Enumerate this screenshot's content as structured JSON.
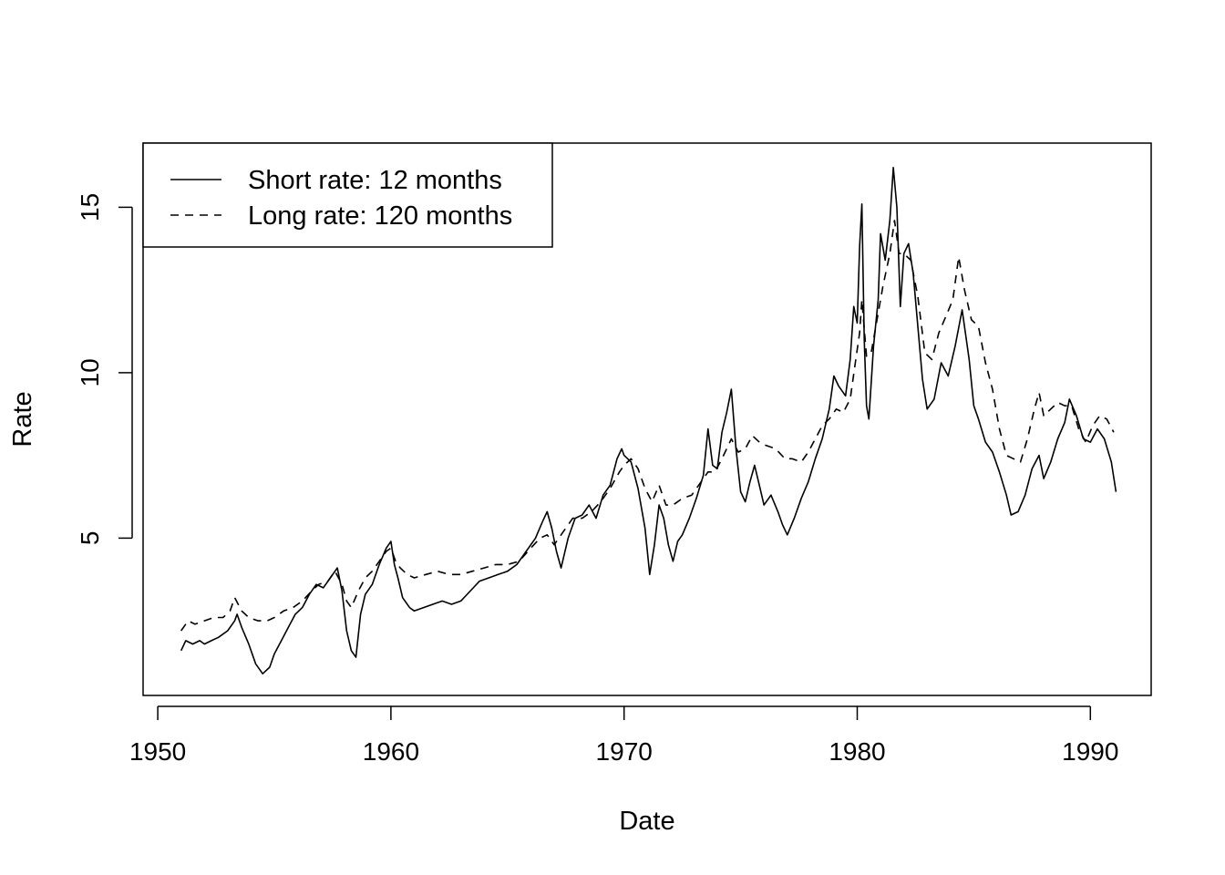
{
  "chart_data": {
    "type": "line",
    "title": "",
    "xlabel": "Date",
    "ylabel": "Rate",
    "xlim": [
      1950.0,
      1993.0
    ],
    "ylim": [
      0.0,
      17.0
    ],
    "x_ticks": [
      1950,
      1960,
      1970,
      1980,
      1990
    ],
    "y_ticks": [
      5,
      10,
      15
    ],
    "grid": false,
    "legend_position": "top-left",
    "series": [
      {
        "name": "Short rate: 12 months",
        "line_style": "solid",
        "color": "#000000",
        "points": [
          [
            1951.0,
            1.6
          ],
          [
            1951.2,
            1.9
          ],
          [
            1951.5,
            1.8
          ],
          [
            1951.8,
            1.9
          ],
          [
            1952.0,
            1.8
          ],
          [
            1952.3,
            1.9
          ],
          [
            1952.6,
            2.0
          ],
          [
            1953.0,
            2.2
          ],
          [
            1953.3,
            2.5
          ],
          [
            1953.4,
            2.7
          ],
          [
            1953.6,
            2.3
          ],
          [
            1953.9,
            1.8
          ],
          [
            1954.2,
            1.2
          ],
          [
            1954.5,
            0.9
          ],
          [
            1954.8,
            1.1
          ],
          [
            1955.0,
            1.5
          ],
          [
            1955.3,
            1.9
          ],
          [
            1955.6,
            2.3
          ],
          [
            1955.9,
            2.7
          ],
          [
            1956.2,
            2.9
          ],
          [
            1956.5,
            3.3
          ],
          [
            1956.8,
            3.6
          ],
          [
            1957.1,
            3.5
          ],
          [
            1957.4,
            3.8
          ],
          [
            1957.7,
            4.1
          ],
          [
            1957.9,
            3.4
          ],
          [
            1958.1,
            2.2
          ],
          [
            1958.3,
            1.6
          ],
          [
            1958.5,
            1.4
          ],
          [
            1958.7,
            2.7
          ],
          [
            1958.9,
            3.3
          ],
          [
            1959.2,
            3.6
          ],
          [
            1959.5,
            4.2
          ],
          [
            1959.8,
            4.7
          ],
          [
            1960.0,
            4.9
          ],
          [
            1960.15,
            4.2
          ],
          [
            1960.3,
            3.8
          ],
          [
            1960.5,
            3.2
          ],
          [
            1960.8,
            2.9
          ],
          [
            1961.0,
            2.8
          ],
          [
            1961.4,
            2.9
          ],
          [
            1961.8,
            3.0
          ],
          [
            1962.2,
            3.1
          ],
          [
            1962.6,
            3.0
          ],
          [
            1963.0,
            3.1
          ],
          [
            1963.4,
            3.4
          ],
          [
            1963.8,
            3.7
          ],
          [
            1964.2,
            3.8
          ],
          [
            1964.6,
            3.9
          ],
          [
            1965.0,
            4.0
          ],
          [
            1965.4,
            4.2
          ],
          [
            1965.8,
            4.6
          ],
          [
            1966.2,
            5.0
          ],
          [
            1966.5,
            5.5
          ],
          [
            1966.7,
            5.8
          ],
          [
            1966.9,
            5.3
          ],
          [
            1967.1,
            4.6
          ],
          [
            1967.3,
            4.1
          ],
          [
            1967.6,
            5.0
          ],
          [
            1967.9,
            5.6
          ],
          [
            1968.2,
            5.7
          ],
          [
            1968.5,
            6.0
          ],
          [
            1968.8,
            5.6
          ],
          [
            1969.1,
            6.3
          ],
          [
            1969.4,
            6.6
          ],
          [
            1969.7,
            7.4
          ],
          [
            1969.9,
            7.7
          ],
          [
            1970.0,
            7.5
          ],
          [
            1970.3,
            7.3
          ],
          [
            1970.6,
            6.5
          ],
          [
            1970.9,
            5.3
          ],
          [
            1971.1,
            3.9
          ],
          [
            1971.3,
            4.8
          ],
          [
            1971.5,
            6.0
          ],
          [
            1971.7,
            5.6
          ],
          [
            1971.9,
            4.8
          ],
          [
            1972.1,
            4.3
          ],
          [
            1972.3,
            4.9
          ],
          [
            1972.5,
            5.1
          ],
          [
            1972.8,
            5.6
          ],
          [
            1973.1,
            6.2
          ],
          [
            1973.4,
            6.9
          ],
          [
            1973.6,
            8.3
          ],
          [
            1973.8,
            7.2
          ],
          [
            1974.0,
            7.1
          ],
          [
            1974.2,
            8.2
          ],
          [
            1974.4,
            8.8
          ],
          [
            1974.6,
            9.5
          ],
          [
            1974.8,
            7.7
          ],
          [
            1975.0,
            6.4
          ],
          [
            1975.2,
            6.1
          ],
          [
            1975.4,
            6.7
          ],
          [
            1975.6,
            7.2
          ],
          [
            1975.8,
            6.6
          ],
          [
            1976.0,
            6.0
          ],
          [
            1976.3,
            6.3
          ],
          [
            1976.6,
            5.8
          ],
          [
            1976.8,
            5.4
          ],
          [
            1977.0,
            5.1
          ],
          [
            1977.3,
            5.6
          ],
          [
            1977.6,
            6.2
          ],
          [
            1977.9,
            6.7
          ],
          [
            1978.2,
            7.4
          ],
          [
            1978.5,
            8.0
          ],
          [
            1978.8,
            8.9
          ],
          [
            1979.0,
            9.9
          ],
          [
            1979.2,
            9.6
          ],
          [
            1979.5,
            9.3
          ],
          [
            1979.7,
            10.4
          ],
          [
            1979.85,
            12.0
          ],
          [
            1980.0,
            11.5
          ],
          [
            1980.1,
            13.8
          ],
          [
            1980.2,
            15.1
          ],
          [
            1980.3,
            11.0
          ],
          [
            1980.4,
            9.0
          ],
          [
            1980.5,
            8.6
          ],
          [
            1980.7,
            10.8
          ],
          [
            1980.9,
            12.2
          ],
          [
            1981.0,
            14.2
          ],
          [
            1981.2,
            13.4
          ],
          [
            1981.4,
            14.6
          ],
          [
            1981.55,
            16.2
          ],
          [
            1981.7,
            15.0
          ],
          [
            1981.85,
            12.0
          ],
          [
            1982.0,
            13.6
          ],
          [
            1982.2,
            13.9
          ],
          [
            1982.4,
            13.0
          ],
          [
            1982.6,
            11.4
          ],
          [
            1982.8,
            9.8
          ],
          [
            1983.0,
            8.9
          ],
          [
            1983.3,
            9.2
          ],
          [
            1983.6,
            10.3
          ],
          [
            1983.9,
            9.9
          ],
          [
            1984.2,
            10.8
          ],
          [
            1984.5,
            11.9
          ],
          [
            1984.8,
            10.4
          ],
          [
            1985.0,
            9.0
          ],
          [
            1985.2,
            8.6
          ],
          [
            1985.5,
            7.9
          ],
          [
            1985.8,
            7.6
          ],
          [
            1986.1,
            7.0
          ],
          [
            1986.4,
            6.3
          ],
          [
            1986.6,
            5.7
          ],
          [
            1986.9,
            5.8
          ],
          [
            1987.2,
            6.3
          ],
          [
            1987.5,
            7.1
          ],
          [
            1987.8,
            7.5
          ],
          [
            1988.0,
            6.8
          ],
          [
            1988.3,
            7.3
          ],
          [
            1988.6,
            8.0
          ],
          [
            1988.9,
            8.5
          ],
          [
            1989.1,
            9.2
          ],
          [
            1989.4,
            8.7
          ],
          [
            1989.7,
            8.0
          ],
          [
            1990.0,
            7.9
          ],
          [
            1990.3,
            8.3
          ],
          [
            1990.6,
            8.0
          ],
          [
            1990.9,
            7.3
          ],
          [
            1991.1,
            6.4
          ]
        ]
      },
      {
        "name": "Long rate: 120 months",
        "line_style": "dashed",
        "color": "#000000",
        "points": [
          [
            1951.0,
            2.2
          ],
          [
            1951.3,
            2.5
          ],
          [
            1951.6,
            2.4
          ],
          [
            1952.0,
            2.5
          ],
          [
            1952.4,
            2.6
          ],
          [
            1952.8,
            2.6
          ],
          [
            1953.1,
            2.8
          ],
          [
            1953.3,
            3.2
          ],
          [
            1953.6,
            2.8
          ],
          [
            1953.9,
            2.6
          ],
          [
            1954.3,
            2.5
          ],
          [
            1954.7,
            2.5
          ],
          [
            1955.0,
            2.6
          ],
          [
            1955.4,
            2.8
          ],
          [
            1955.8,
            2.9
          ],
          [
            1956.2,
            3.1
          ],
          [
            1956.6,
            3.4
          ],
          [
            1956.9,
            3.6
          ],
          [
            1957.3,
            3.7
          ],
          [
            1957.6,
            4.0
          ],
          [
            1957.9,
            3.6
          ],
          [
            1958.1,
            3.1
          ],
          [
            1958.3,
            2.9
          ],
          [
            1958.6,
            3.4
          ],
          [
            1958.9,
            3.8
          ],
          [
            1959.2,
            4.0
          ],
          [
            1959.5,
            4.3
          ],
          [
            1959.8,
            4.6
          ],
          [
            1960.0,
            4.7
          ],
          [
            1960.2,
            4.3
          ],
          [
            1960.4,
            4.1
          ],
          [
            1960.7,
            3.9
          ],
          [
            1961.0,
            3.8
          ],
          [
            1961.5,
            3.9
          ],
          [
            1962.0,
            4.0
          ],
          [
            1962.5,
            3.9
          ],
          [
            1963.0,
            3.9
          ],
          [
            1963.5,
            4.0
          ],
          [
            1964.0,
            4.1
          ],
          [
            1964.5,
            4.2
          ],
          [
            1965.0,
            4.2
          ],
          [
            1965.5,
            4.3
          ],
          [
            1966.0,
            4.7
          ],
          [
            1966.4,
            5.0
          ],
          [
            1966.7,
            5.1
          ],
          [
            1967.0,
            4.8
          ],
          [
            1967.4,
            5.2
          ],
          [
            1967.8,
            5.6
          ],
          [
            1968.2,
            5.6
          ],
          [
            1968.6,
            5.8
          ],
          [
            1969.0,
            6.1
          ],
          [
            1969.4,
            6.5
          ],
          [
            1969.8,
            7.0
          ],
          [
            1970.0,
            7.2
          ],
          [
            1970.3,
            7.4
          ],
          [
            1970.6,
            7.1
          ],
          [
            1970.9,
            6.5
          ],
          [
            1971.2,
            6.1
          ],
          [
            1971.5,
            6.6
          ],
          [
            1971.8,
            6.0
          ],
          [
            1972.1,
            6.0
          ],
          [
            1972.5,
            6.2
          ],
          [
            1972.9,
            6.3
          ],
          [
            1973.2,
            6.6
          ],
          [
            1973.6,
            7.0
          ],
          [
            1973.9,
            7.0
          ],
          [
            1974.2,
            7.4
          ],
          [
            1974.6,
            8.0
          ],
          [
            1974.9,
            7.6
          ],
          [
            1975.2,
            7.7
          ],
          [
            1975.5,
            8.1
          ],
          [
            1975.8,
            7.9
          ],
          [
            1976.1,
            7.8
          ],
          [
            1976.5,
            7.7
          ],
          [
            1976.9,
            7.4
          ],
          [
            1977.2,
            7.4
          ],
          [
            1977.6,
            7.3
          ],
          [
            1977.9,
            7.6
          ],
          [
            1978.2,
            8.0
          ],
          [
            1978.5,
            8.4
          ],
          [
            1978.8,
            8.6
          ],
          [
            1979.1,
            8.9
          ],
          [
            1979.4,
            8.8
          ],
          [
            1979.7,
            9.2
          ],
          [
            1979.9,
            10.2
          ],
          [
            1980.1,
            11.2
          ],
          [
            1980.2,
            12.2
          ],
          [
            1980.4,
            10.5
          ],
          [
            1980.6,
            10.6
          ],
          [
            1980.9,
            11.8
          ],
          [
            1981.1,
            12.6
          ],
          [
            1981.4,
            13.6
          ],
          [
            1981.6,
            14.6
          ],
          [
            1981.8,
            13.6
          ],
          [
            1982.0,
            13.6
          ],
          [
            1982.3,
            13.4
          ],
          [
            1982.6,
            12.3
          ],
          [
            1982.9,
            10.6
          ],
          [
            1983.2,
            10.4
          ],
          [
            1983.5,
            11.2
          ],
          [
            1983.8,
            11.7
          ],
          [
            1984.1,
            12.2
          ],
          [
            1984.35,
            13.5
          ],
          [
            1984.6,
            12.5
          ],
          [
            1984.9,
            11.6
          ],
          [
            1985.2,
            11.4
          ],
          [
            1985.5,
            10.3
          ],
          [
            1985.8,
            9.5
          ],
          [
            1986.1,
            8.3
          ],
          [
            1986.4,
            7.5
          ],
          [
            1986.7,
            7.4
          ],
          [
            1987.0,
            7.3
          ],
          [
            1987.3,
            8.0
          ],
          [
            1987.6,
            8.9
          ],
          [
            1987.8,
            9.4
          ],
          [
            1988.0,
            8.7
          ],
          [
            1988.3,
            8.9
          ],
          [
            1988.6,
            9.1
          ],
          [
            1988.9,
            9.0
          ],
          [
            1989.2,
            9.0
          ],
          [
            1989.5,
            8.3
          ],
          [
            1989.8,
            7.9
          ],
          [
            1990.1,
            8.4
          ],
          [
            1990.4,
            8.7
          ],
          [
            1990.7,
            8.6
          ],
          [
            1991.0,
            8.2
          ]
        ]
      }
    ]
  }
}
